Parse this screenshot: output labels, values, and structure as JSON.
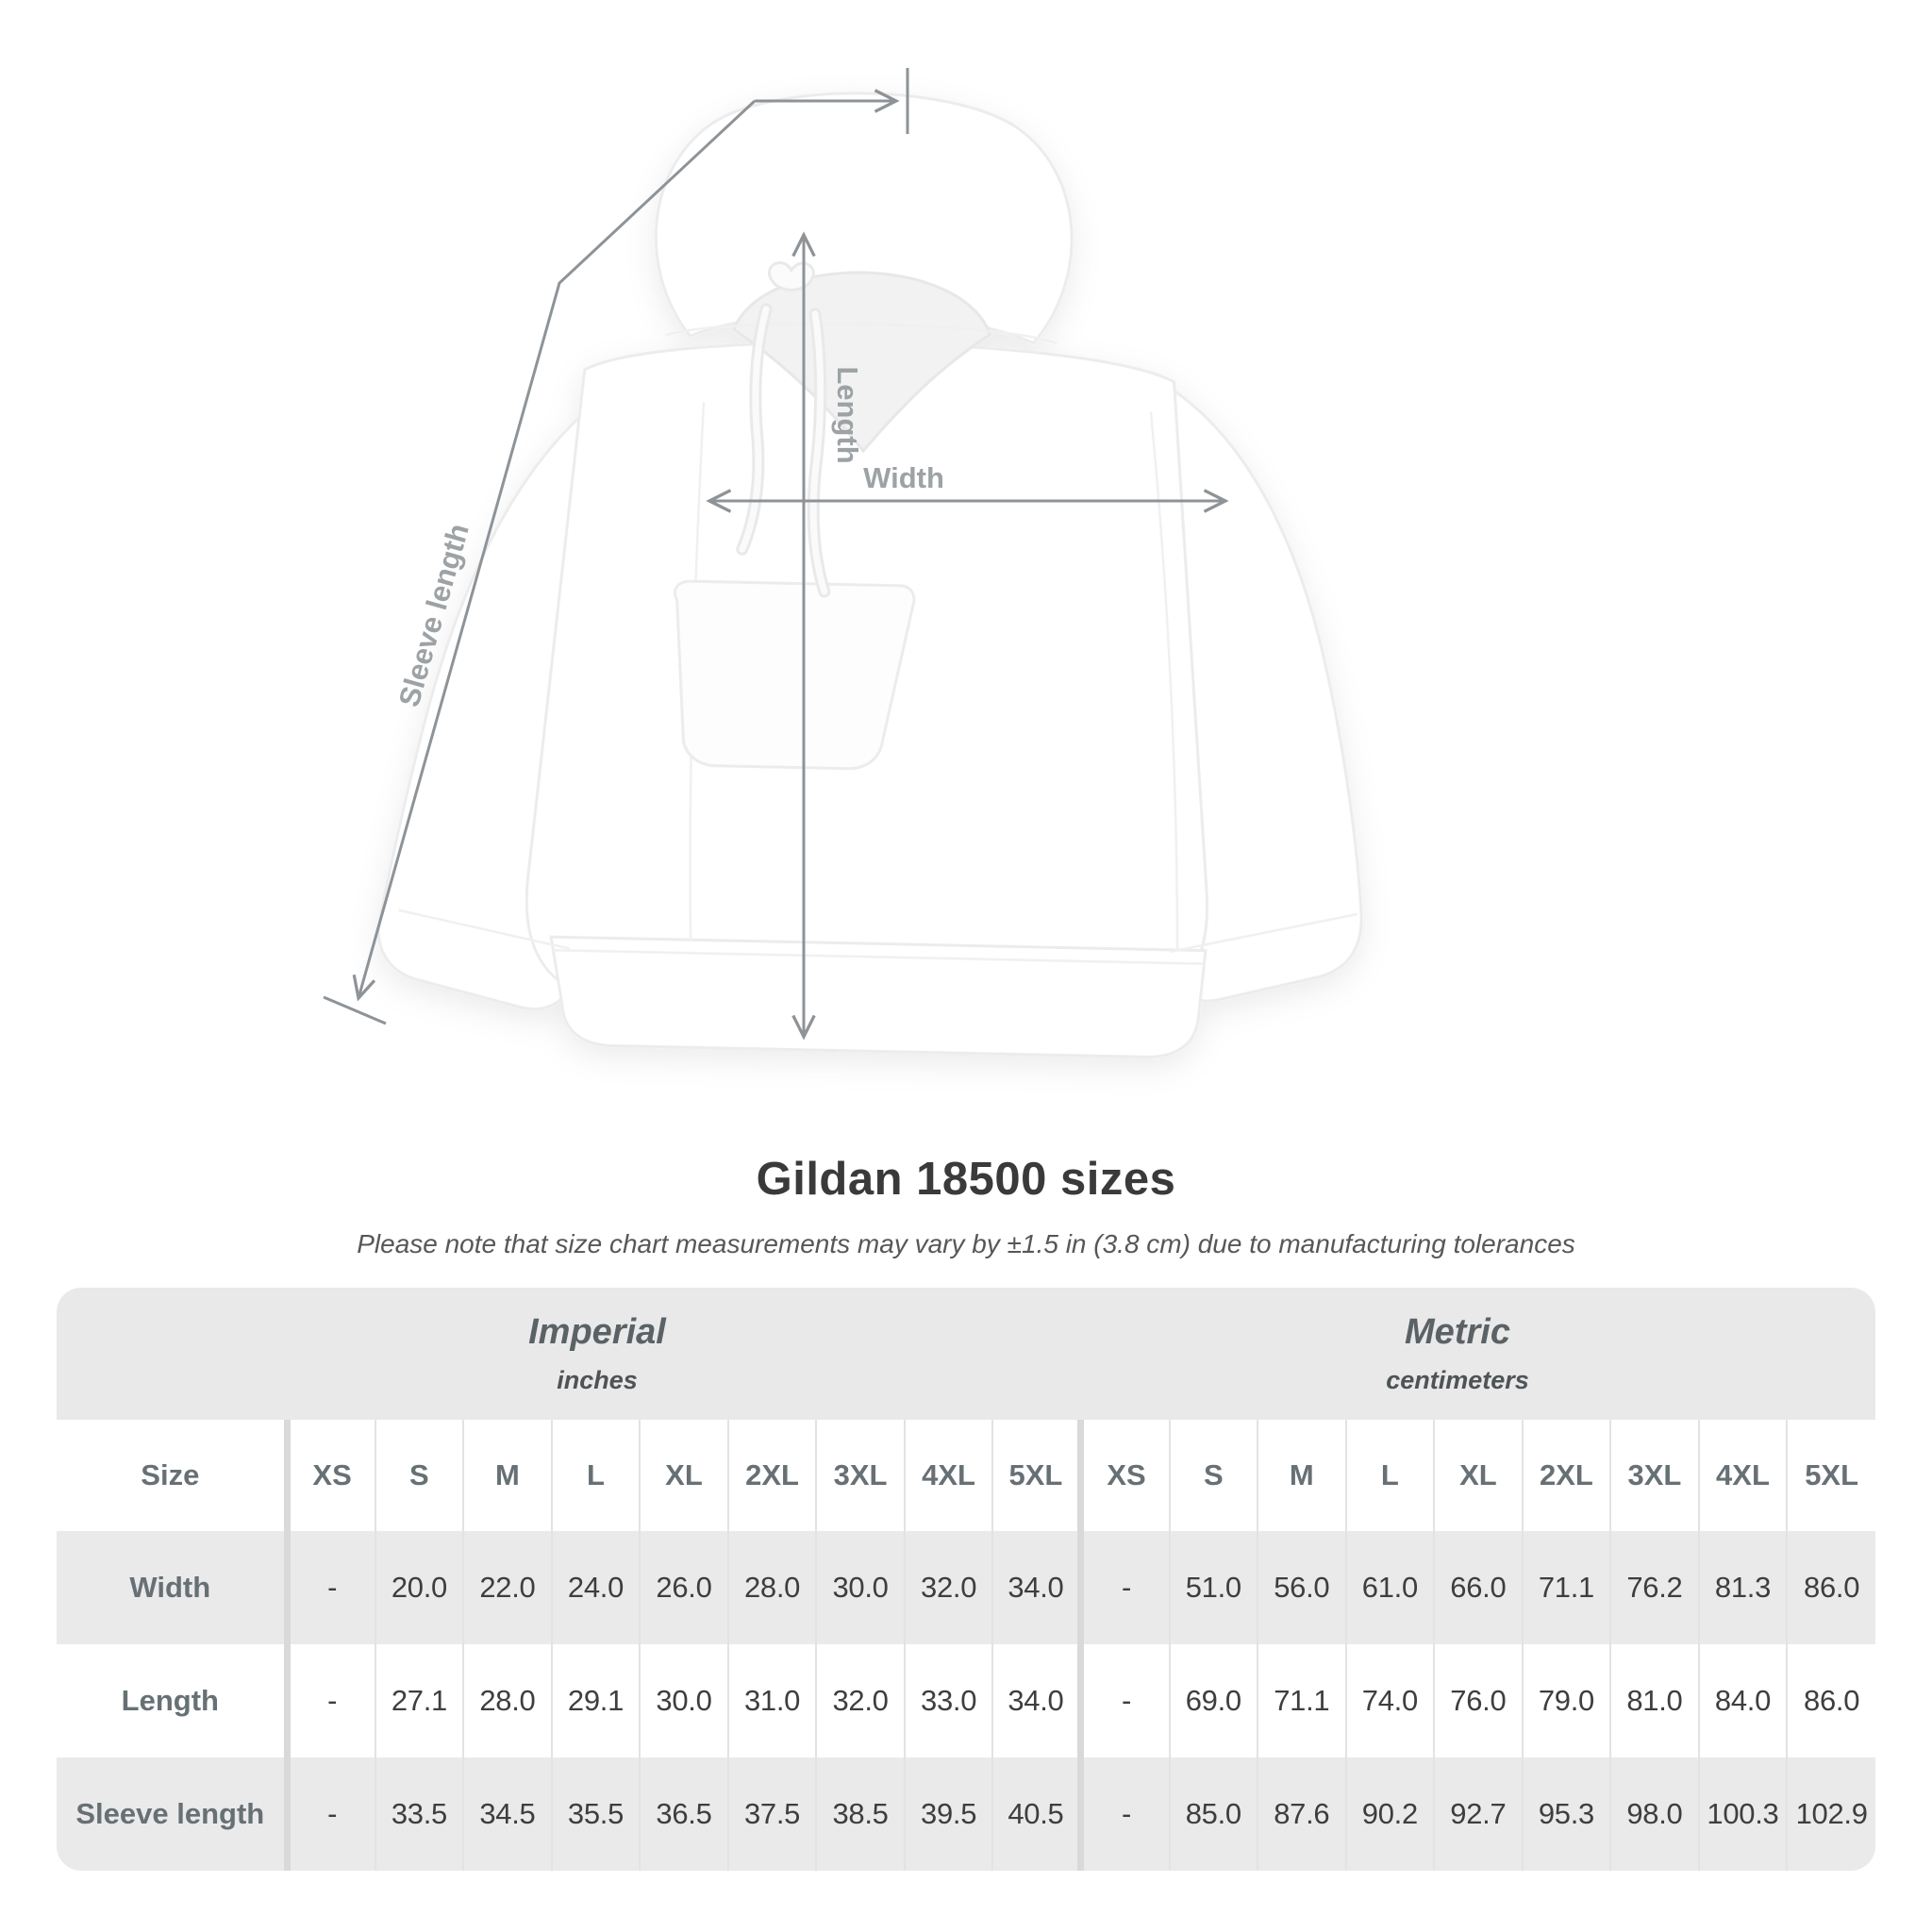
{
  "title": "Gildan 18500 sizes",
  "subtitle": "Please note that size chart measurements may vary by ±1.5 in (3.8 cm) due to manufacturing tolerances",
  "diagram": {
    "labels": {
      "width": "Width",
      "length": "Length",
      "sleeve": "Sleeve length"
    },
    "garment": "white pullover hoodie flat-lay"
  },
  "table": {
    "size_header": "Size",
    "unit_groups": [
      {
        "label": "Imperial",
        "sublabel": "inches"
      },
      {
        "label": "Metric",
        "sublabel": "centimeters"
      }
    ],
    "sizes": [
      "XS",
      "S",
      "M",
      "L",
      "XL",
      "2XL",
      "3XL",
      "4XL",
      "5XL"
    ],
    "rows": [
      {
        "label": "Width",
        "imperial": [
          "-",
          "20.0",
          "22.0",
          "24.0",
          "26.0",
          "28.0",
          "30.0",
          "32.0",
          "34.0"
        ],
        "metric": [
          "-",
          "51.0",
          "56.0",
          "61.0",
          "66.0",
          "71.1",
          "76.2",
          "81.3",
          "86.0"
        ]
      },
      {
        "label": "Length",
        "imperial": [
          "-",
          "27.1",
          "28.0",
          "29.1",
          "30.0",
          "31.0",
          "32.0",
          "33.0",
          "34.0"
        ],
        "metric": [
          "-",
          "69.0",
          "71.1",
          "74.0",
          "76.0",
          "79.0",
          "81.0",
          "84.0",
          "86.0"
        ]
      },
      {
        "label": "Sleeve length",
        "imperial": [
          "-",
          "33.5",
          "34.5",
          "35.5",
          "36.5",
          "37.5",
          "38.5",
          "39.5",
          "40.5"
        ],
        "metric": [
          "-",
          "85.0",
          "87.6",
          "90.2",
          "92.7",
          "95.3",
          "98.0",
          "100.3",
          "102.9"
        ]
      }
    ]
  },
  "colors": {
    "header_band": "#e9e9e9",
    "shaded_row": "#ebeaea",
    "thin_separator": "#e3e3e3",
    "thick_separator": "#d9d9d9",
    "label_gray": "#677074",
    "value_dark": "#3e3e3e",
    "measure_line": "#8e9397",
    "measure_label": "#9da2a5"
  },
  "chart_data": {
    "type": "table",
    "title": "Gildan 18500 sizes",
    "note": "Measurements may vary by ±1.5 in (3.8 cm) due to manufacturing tolerances",
    "column_groups": [
      "Imperial (inches)",
      "Metric (centimeters)"
    ],
    "columns": [
      "XS",
      "S",
      "M",
      "L",
      "XL",
      "2XL",
      "3XL",
      "4XL",
      "5XL"
    ],
    "rows": [
      {
        "measurement": "Width",
        "imperial_in": [
          null,
          20.0,
          22.0,
          24.0,
          26.0,
          28.0,
          30.0,
          32.0,
          34.0
        ],
        "metric_cm": [
          null,
          51.0,
          56.0,
          61.0,
          66.0,
          71.1,
          76.2,
          81.3,
          86.0
        ]
      },
      {
        "measurement": "Length",
        "imperial_in": [
          null,
          27.1,
          28.0,
          29.1,
          30.0,
          31.0,
          32.0,
          33.0,
          34.0
        ],
        "metric_cm": [
          null,
          69.0,
          71.1,
          74.0,
          76.0,
          79.0,
          81.0,
          84.0,
          86.0
        ]
      },
      {
        "measurement": "Sleeve length",
        "imperial_in": [
          null,
          33.5,
          34.5,
          35.5,
          36.5,
          37.5,
          38.5,
          39.5,
          40.5
        ],
        "metric_cm": [
          null,
          85.0,
          87.6,
          90.2,
          92.7,
          95.3,
          98.0,
          100.3,
          102.9
        ]
      }
    ]
  }
}
